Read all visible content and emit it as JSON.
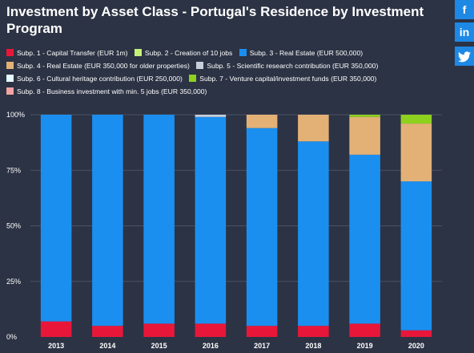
{
  "share": {
    "facebook_glyph": "f",
    "linkedin_glyph": "in",
    "twitter_glyph": "t",
    "color": "#1e88e5"
  },
  "chart_data": {
    "type": "bar",
    "stacked": true,
    "percent": true,
    "title": "Investment by Asset Class - Portugal's Residence by Investment Program",
    "categories": [
      "2013",
      "2014",
      "2015",
      "2016",
      "2017",
      "2018",
      "2019",
      "2020"
    ],
    "y_ticks": [
      "100%",
      "75%",
      "50%",
      "25%",
      "0%"
    ],
    "ylim": [
      0,
      100
    ],
    "grid": true,
    "legend_position": "top",
    "series": [
      {
        "name": "Subp. 1 - Capital Transfer (EUR 1m)",
        "color": "#e8173a",
        "values": [
          7,
          5,
          6,
          6,
          5,
          5,
          6,
          3
        ]
      },
      {
        "name": "Subp. 2 - Creation of 10 jobs",
        "color": "#c5f07a",
        "values": [
          0,
          0,
          0,
          0,
          0,
          0,
          0,
          0
        ]
      },
      {
        "name": "Subp. 3 - Real Estate (EUR 500,000)",
        "color": "#1b8ff0",
        "values": [
          93,
          95,
          94,
          93,
          89,
          83,
          76,
          67
        ]
      },
      {
        "name": "Subp. 4 - Real Estate (EUR 350,000 for older properties)",
        "color": "#e3b176",
        "values": [
          0,
          0,
          0,
          0,
          6,
          12,
          17,
          26
        ]
      },
      {
        "name": "Subp. 5 - Scientific research contribution (EUR 350,000)",
        "color": "#c7cfdc",
        "values": [
          0,
          0,
          0,
          1,
          0,
          0,
          0,
          0
        ]
      },
      {
        "name": "Subp. 6 - Cultural heritage contribution (EUR 250,000)",
        "color": "#e4fbff",
        "values": [
          0,
          0,
          0,
          0,
          0,
          0,
          0,
          0
        ]
      },
      {
        "name": "Subp. 7 - Venture capital/investment funds (EUR 350,000)",
        "color": "#8fd11f",
        "values": [
          0,
          0,
          0,
          0,
          0,
          0,
          1,
          4
        ]
      },
      {
        "name": "Subp. 8 - Business investment with min. 5 jobs (EUR 350,000)",
        "color": "#f4a3a3",
        "values": [
          0,
          0,
          0,
          0,
          0,
          0,
          0,
          0
        ]
      }
    ]
  }
}
